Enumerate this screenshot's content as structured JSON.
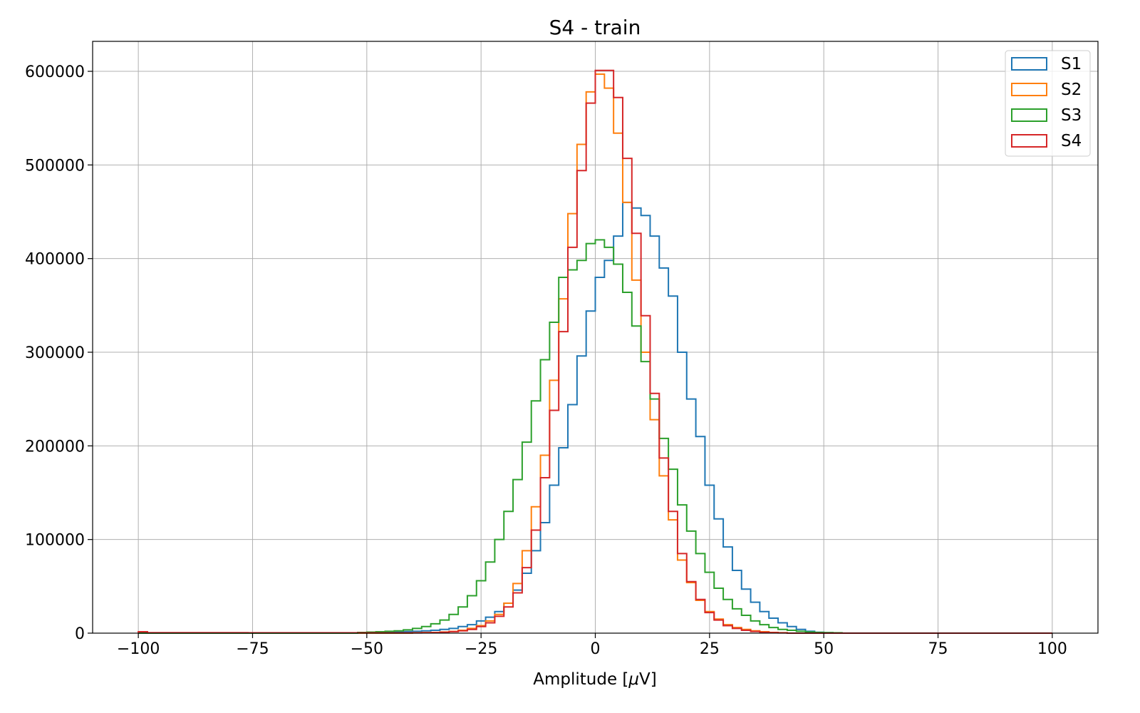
{
  "chart_data": {
    "type": "histogram",
    "title": "S4 - train",
    "xlabel": "Amplitude [",
    "xlabel_mu": "μ",
    "xlabel_unit": "V]",
    "ylabel": "",
    "xlim": [
      -110,
      110
    ],
    "ylim": [
      0,
      632000
    ],
    "grid": true,
    "legend_position": "top-right",
    "x_ticks": [
      -100,
      -75,
      -50,
      -25,
      0,
      25,
      50,
      75,
      100
    ],
    "x_tick_labels": [
      "−100",
      "−75",
      "−50",
      "−25",
      "0",
      "25",
      "50",
      "75",
      "100"
    ],
    "y_ticks": [
      0,
      100000,
      200000,
      300000,
      400000,
      500000,
      600000
    ],
    "y_tick_labels": [
      "0",
      "100000",
      "200000",
      "300000",
      "400000",
      "500000",
      "600000"
    ],
    "bin_range": [
      -100,
      100
    ],
    "bin_width": 2,
    "series": [
      {
        "name": "S1",
        "color": "#1f77b4",
        "peaks": [
          [
            -48,
            1000
          ],
          [
            -44,
            1500
          ],
          [
            -40,
            2000
          ],
          [
            -36,
            3000
          ],
          [
            -34,
            4000
          ],
          [
            -32,
            5000
          ],
          [
            -30,
            7000
          ],
          [
            -28,
            9000
          ],
          [
            -26,
            13000
          ],
          [
            -24,
            17000
          ],
          [
            -22,
            23000
          ],
          [
            -20,
            32000
          ],
          [
            -18,
            46000
          ],
          [
            -16,
            64000
          ],
          [
            -14,
            88000
          ],
          [
            -12,
            118000
          ],
          [
            -10,
            158000
          ],
          [
            -8,
            198000
          ],
          [
            -6,
            244000
          ],
          [
            -4,
            296000
          ],
          [
            -2,
            344000
          ],
          [
            0,
            380000
          ],
          [
            2,
            398000
          ],
          [
            4,
            424000
          ],
          [
            6,
            460000
          ],
          [
            8,
            454000
          ],
          [
            10,
            446000
          ],
          [
            12,
            424000
          ],
          [
            14,
            390000
          ],
          [
            16,
            360000
          ],
          [
            18,
            300000
          ],
          [
            20,
            250000
          ],
          [
            22,
            210000
          ],
          [
            24,
            158000
          ],
          [
            26,
            122000
          ],
          [
            28,
            92000
          ],
          [
            30,
            67000
          ],
          [
            32,
            47000
          ],
          [
            34,
            33000
          ],
          [
            36,
            23000
          ],
          [
            38,
            16000
          ],
          [
            40,
            11000
          ],
          [
            42,
            7000
          ],
          [
            44,
            4000
          ],
          [
            46,
            2000
          ],
          [
            48,
            1000
          ],
          [
            50,
            500
          ]
        ]
      },
      {
        "name": "S2",
        "color": "#ff7f0e",
        "peaks": [
          [
            -40,
            500
          ],
          [
            -36,
            800
          ],
          [
            -34,
            1200
          ],
          [
            -32,
            1800
          ],
          [
            -30,
            3000
          ],
          [
            -28,
            5000
          ],
          [
            -26,
            8000
          ],
          [
            -24,
            13000
          ],
          [
            -22,
            20000
          ],
          [
            -20,
            32000
          ],
          [
            -18,
            53000
          ],
          [
            -16,
            88000
          ],
          [
            -14,
            135000
          ],
          [
            -12,
            190000
          ],
          [
            -10,
            270000
          ],
          [
            -8,
            357000
          ],
          [
            -6,
            448000
          ],
          [
            -4,
            522000
          ],
          [
            -2,
            578000
          ],
          [
            0,
            597000
          ],
          [
            2,
            582000
          ],
          [
            4,
            534000
          ],
          [
            6,
            460000
          ],
          [
            8,
            377000
          ],
          [
            10,
            300000
          ],
          [
            12,
            228000
          ],
          [
            14,
            168000
          ],
          [
            16,
            121000
          ],
          [
            18,
            78000
          ],
          [
            20,
            54000
          ],
          [
            22,
            35000
          ],
          [
            24,
            23000
          ],
          [
            26,
            15000
          ],
          [
            28,
            9000
          ],
          [
            30,
            6000
          ],
          [
            32,
            4000
          ],
          [
            34,
            2500
          ],
          [
            36,
            1500
          ],
          [
            38,
            800
          ],
          [
            40,
            500
          ]
        ]
      },
      {
        "name": "S3",
        "color": "#2ca02c",
        "peaks": [
          [
            -52,
            800
          ],
          [
            -48,
            1500
          ],
          [
            -44,
            2500
          ],
          [
            -42,
            3500
          ],
          [
            -40,
            5000
          ],
          [
            -38,
            7000
          ],
          [
            -36,
            10000
          ],
          [
            -34,
            14000
          ],
          [
            -32,
            20000
          ],
          [
            -30,
            28000
          ],
          [
            -28,
            40000
          ],
          [
            -26,
            56000
          ],
          [
            -24,
            76000
          ],
          [
            -22,
            100000
          ],
          [
            -20,
            130000
          ],
          [
            -18,
            164000
          ],
          [
            -16,
            204000
          ],
          [
            -14,
            248000
          ],
          [
            -12,
            292000
          ],
          [
            -10,
            332000
          ],
          [
            -8,
            380000
          ],
          [
            -6,
            388000
          ],
          [
            -4,
            398000
          ],
          [
            -2,
            416000
          ],
          [
            0,
            420000
          ],
          [
            2,
            412000
          ],
          [
            4,
            394000
          ],
          [
            6,
            364000
          ],
          [
            8,
            328000
          ],
          [
            10,
            290000
          ],
          [
            12,
            250000
          ],
          [
            14,
            208000
          ],
          [
            16,
            175000
          ],
          [
            18,
            137000
          ],
          [
            20,
            109000
          ],
          [
            22,
            85000
          ],
          [
            24,
            65000
          ],
          [
            26,
            48000
          ],
          [
            28,
            36000
          ],
          [
            30,
            26000
          ],
          [
            32,
            19000
          ],
          [
            34,
            13000
          ],
          [
            36,
            9000
          ],
          [
            38,
            6000
          ],
          [
            40,
            4000
          ],
          [
            42,
            3000
          ],
          [
            44,
            2000
          ],
          [
            46,
            1200
          ],
          [
            48,
            800
          ],
          [
            52,
            400
          ]
        ]
      },
      {
        "name": "S4",
        "color": "#d62728",
        "peaks": [
          [
            -100,
            1500
          ],
          [
            -98,
            500
          ],
          [
            -40,
            300
          ],
          [
            -36,
            600
          ],
          [
            -34,
            1000
          ],
          [
            -32,
            1600
          ],
          [
            -30,
            2500
          ],
          [
            -28,
            4000
          ],
          [
            -26,
            7000
          ],
          [
            -24,
            11000
          ],
          [
            -22,
            18000
          ],
          [
            -20,
            28000
          ],
          [
            -18,
            43000
          ],
          [
            -16,
            70000
          ],
          [
            -14,
            110000
          ],
          [
            -12,
            166000
          ],
          [
            -10,
            238000
          ],
          [
            -8,
            322000
          ],
          [
            -6,
            412000
          ],
          [
            -4,
            494000
          ],
          [
            -2,
            566000
          ],
          [
            0,
            601000
          ],
          [
            2,
            601000
          ],
          [
            4,
            572000
          ],
          [
            6,
            507000
          ],
          [
            8,
            427000
          ],
          [
            10,
            339000
          ],
          [
            12,
            256000
          ],
          [
            14,
            187000
          ],
          [
            16,
            130000
          ],
          [
            18,
            85000
          ],
          [
            20,
            55000
          ],
          [
            22,
            36000
          ],
          [
            24,
            22000
          ],
          [
            26,
            14000
          ],
          [
            28,
            8000
          ],
          [
            30,
            5000
          ],
          [
            32,
            3000
          ],
          [
            34,
            1800
          ],
          [
            36,
            1000
          ],
          [
            38,
            600
          ],
          [
            40,
            300
          ]
        ]
      }
    ]
  }
}
